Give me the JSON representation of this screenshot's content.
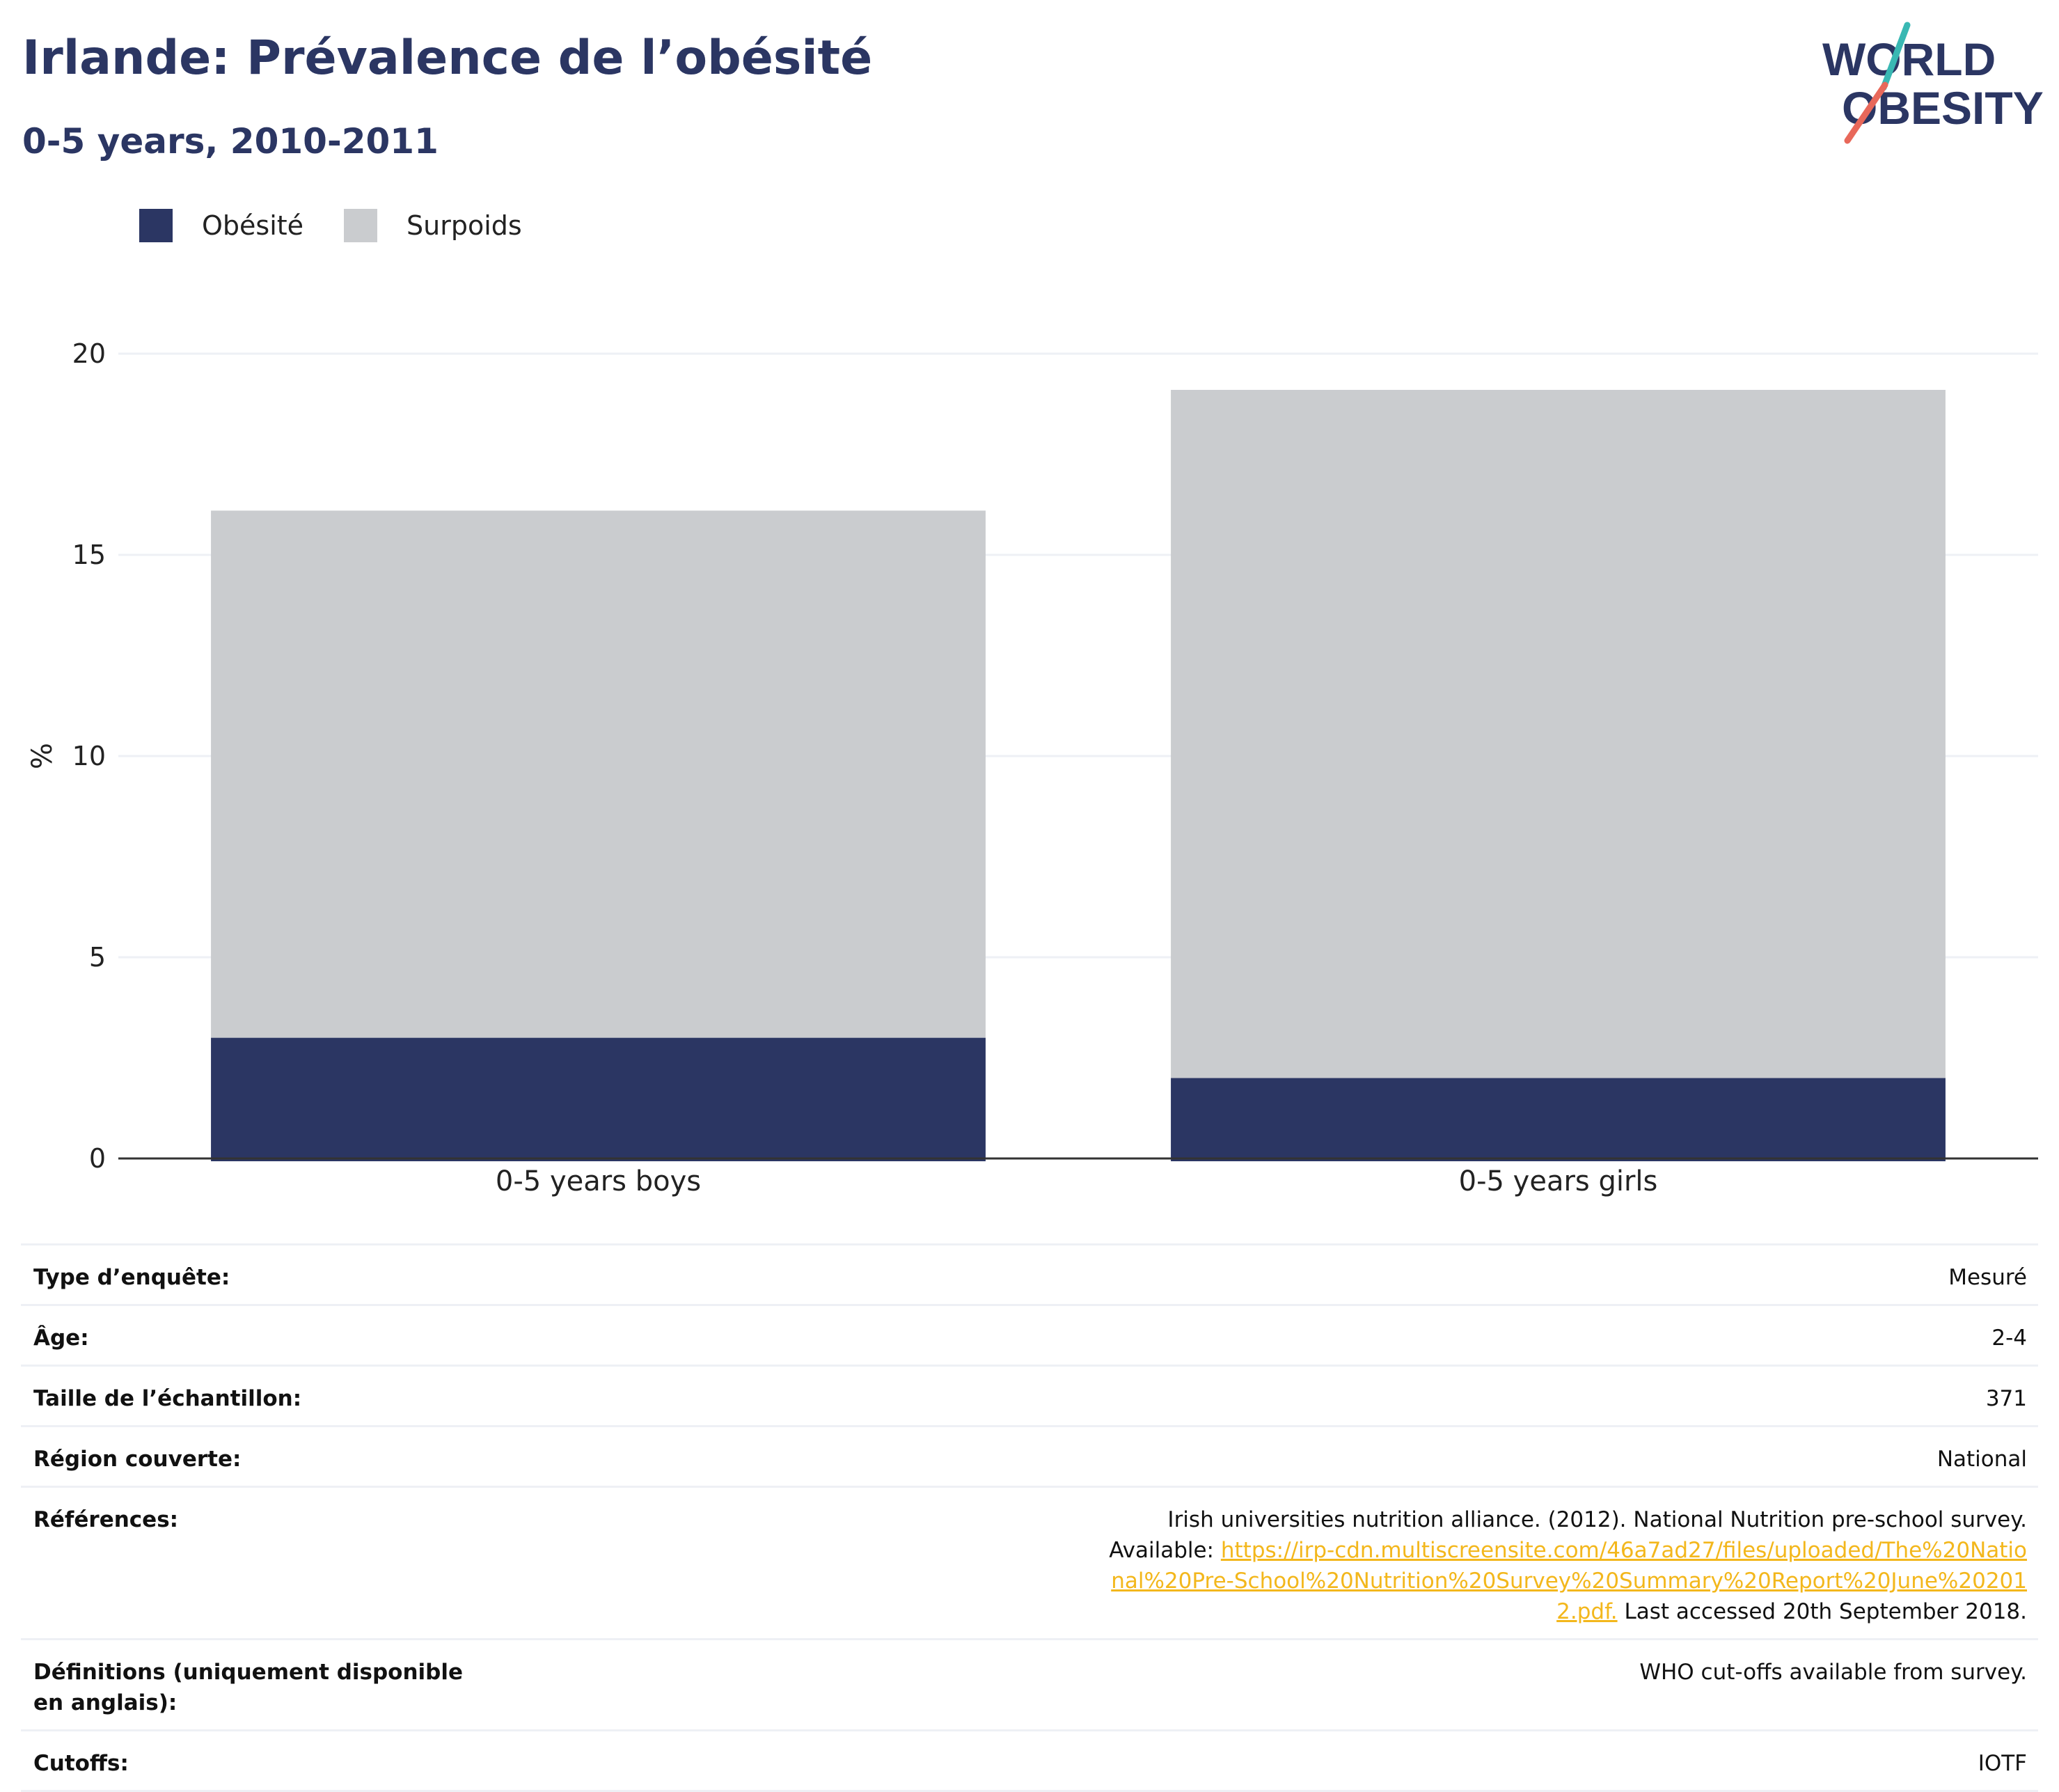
{
  "title": "Irlande: Prévalence de l’obésité",
  "subtitle": "0-5 years, 2010-2011",
  "logo": {
    "line1": "WORLD",
    "line2": "OBESITY",
    "colors": {
      "text": "#2b3663",
      "slash_top": "#39b8b3",
      "slash_bottom": "#e8685a"
    }
  },
  "colors": {
    "obesity": "#2b3663",
    "overweight": "#cacccf",
    "grid": "#eef0f5",
    "axis": "#333333",
    "link": "#f3b71c"
  },
  "chart_data": {
    "type": "bar",
    "stacked": true,
    "ylabel": "%",
    "ylim": [
      0,
      20
    ],
    "yticks": [
      0,
      5,
      10,
      15,
      20
    ],
    "grid": true,
    "legend_position": "top-left",
    "categories": [
      "0-5 years boys",
      "0-5 years girls"
    ],
    "series": [
      {
        "name": "Obésité",
        "color": "#2b3663",
        "values": [
          3.0,
          2.0
        ]
      },
      {
        "name": "Surpoids",
        "color": "#cacccf",
        "values": [
          13.1,
          17.1
        ]
      }
    ]
  },
  "info": {
    "survey_type": {
      "label": "Type d’enquête:",
      "value": "Mesuré"
    },
    "age": {
      "label": "Âge:",
      "value": "2-4"
    },
    "sample_size": {
      "label": "Taille de l’échantillon:",
      "value": "371"
    },
    "region": {
      "label": "Région couverte:",
      "value": "National"
    },
    "references": {
      "label": "Références:",
      "text_before": "Irish universities nutrition alliance. (2012). National Nutrition pre-school survey. Available: ",
      "link": "https://irp-cdn.multiscreensite.com/46a7ad27/files/uploaded/The%20National%20Pre-School%20Nutrition%20Survey%20Summary%20Report%20June%202012.pdf.",
      "text_after": " Last accessed 20th September 2018."
    },
    "definitions": {
      "label": "Définitions (uniquement disponible en anglais):",
      "value": "WHO cut-offs available from survey."
    },
    "cutoffs": {
      "label": "Cutoffs:",
      "value": "IOTF"
    }
  }
}
